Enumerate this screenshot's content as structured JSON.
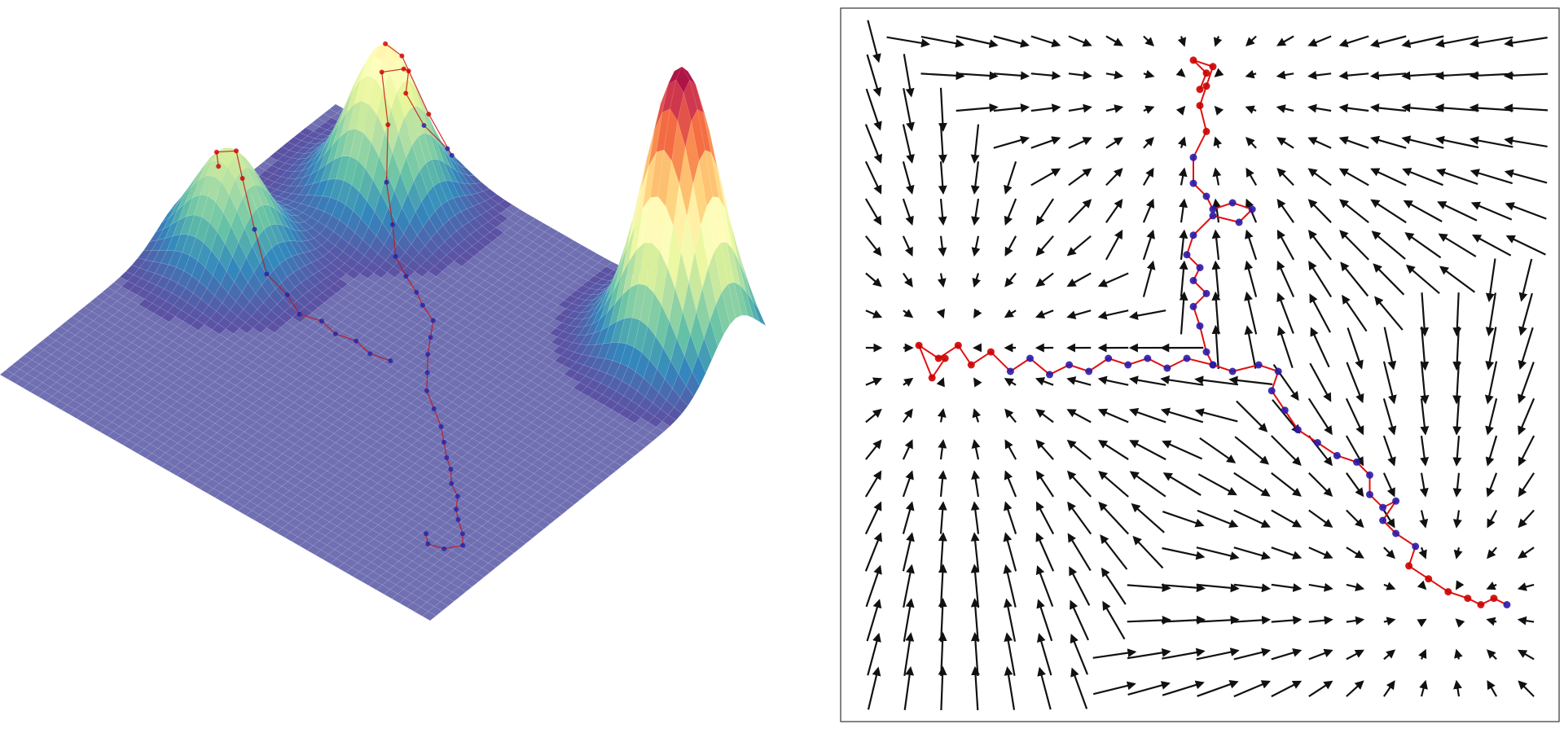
{
  "chart_data": [
    {
      "type": "surface",
      "title": "",
      "xlabel": "",
      "ylabel": "",
      "zlabel": "",
      "axes_visible": false,
      "colormap": "Spectral_r",
      "colors": {
        "base": "#6f6fb2",
        "low": "#5e4fa2",
        "mid": "#fee08b",
        "high": "#9e0142",
        "path_line": "#cc1111",
        "path_point_low": "#2222aa",
        "path_point_high": "#cc0000"
      },
      "grid_extent": [
        [
          -1,
          1
        ],
        [
          -1,
          1
        ]
      ],
      "peaks": [
        {
          "center": [
            0.75,
            0.82
          ],
          "height": 1.0,
          "width": 0.14
        },
        {
          "center": [
            -0.55,
            0.72
          ],
          "height": 0.55,
          "width": 0.14
        },
        {
          "center": [
            -0.78,
            0.08
          ],
          "height": 0.38,
          "width": 0.14
        }
      ],
      "path": [
        [
          -0.55,
          0.72
        ],
        [
          -0.52,
          0.78
        ],
        [
          -0.45,
          0.85
        ],
        [
          -0.42,
          0.95
        ],
        [
          -0.48,
          1.0
        ],
        [
          -0.55,
          0.95
        ],
        [
          -0.58,
          0.88
        ],
        [
          -0.52,
          0.82
        ],
        [
          -0.48,
          0.74
        ],
        [
          -0.52,
          0.66
        ],
        [
          -0.46,
          0.62
        ],
        [
          -0.42,
          0.56
        ],
        [
          -0.36,
          0.52
        ],
        [
          -0.3,
          0.46
        ],
        [
          -0.22,
          0.42
        ],
        [
          -0.14,
          0.38
        ],
        [
          -0.08,
          0.34
        ],
        [
          0.0,
          0.3
        ],
        [
          0.05,
          0.22
        ],
        [
          0.1,
          0.14
        ],
        [
          0.16,
          0.06
        ],
        [
          0.22,
          -0.02
        ],
        [
          0.3,
          -0.08
        ],
        [
          0.38,
          -0.14
        ],
        [
          0.44,
          -0.2
        ],
        [
          0.5,
          -0.26
        ],
        [
          0.55,
          -0.3
        ],
        [
          0.6,
          -0.36
        ],
        [
          0.66,
          -0.4
        ],
        [
          0.7,
          -0.46
        ],
        [
          0.74,
          -0.5
        ],
        [
          0.8,
          -0.55
        ],
        [
          0.84,
          -0.6
        ],
        [
          0.8,
          -0.66
        ],
        [
          0.74,
          -0.68
        ],
        [
          0.7,
          -0.64
        ]
      ],
      "path_branch": [
        [
          0.02,
          0.02
        ],
        [
          -0.06,
          0.0
        ],
        [
          -0.14,
          0.02
        ],
        [
          -0.22,
          0.0
        ],
        [
          -0.3,
          0.02
        ],
        [
          -0.38,
          -0.01
        ],
        [
          -0.46,
          0.02
        ],
        [
          -0.54,
          0.0
        ],
        [
          -0.62,
          0.03
        ],
        [
          -0.7,
          0.06
        ],
        [
          -0.76,
          0.1
        ],
        [
          -0.82,
          0.06
        ],
        [
          -0.78,
          0.02
        ]
      ]
    },
    {
      "type": "quiver",
      "title": "",
      "xlabel": "",
      "ylabel": "",
      "xlim": [
        -1,
        1
      ],
      "ylim": [
        -1,
        1
      ],
      "grid": false,
      "tick_labels": false,
      "arrow_grid": [
        20,
        20
      ],
      "attractors": [
        {
          "center": [
            0.0,
            0.85
          ],
          "strength": 1.0
        },
        {
          "center": [
            -0.75,
            0.05
          ],
          "strength": 1.0
        },
        {
          "center": [
            0.75,
            -0.75
          ],
          "strength": 1.0
        }
      ],
      "colors": {
        "arrow": "#111111",
        "path_line": "#e01010",
        "frame": "#333333"
      },
      "trajectory": [
        [
          0.0,
          0.85
        ],
        [
          0.02,
          0.9
        ],
        [
          -0.02,
          0.94
        ],
        [
          0.04,
          0.92
        ],
        [
          0.02,
          0.86
        ],
        [
          0.0,
          0.8
        ],
        [
          0.02,
          0.72
        ],
        [
          -0.02,
          0.64
        ],
        [
          -0.02,
          0.56
        ],
        [
          0.02,
          0.52
        ],
        [
          0.04,
          0.48
        ],
        [
          0.1,
          0.5
        ],
        [
          0.16,
          0.48
        ],
        [
          0.12,
          0.44
        ],
        [
          0.04,
          0.46
        ],
        [
          -0.02,
          0.4
        ],
        [
          -0.04,
          0.34
        ],
        [
          0.0,
          0.3
        ],
        [
          -0.02,
          0.26
        ],
        [
          0.02,
          0.22
        ],
        [
          -0.02,
          0.18
        ],
        [
          0.0,
          0.12
        ],
        [
          0.02,
          0.04
        ],
        [
          0.04,
          0.0
        ],
        [
          0.1,
          -0.02
        ],
        [
          0.18,
          0.0
        ],
        [
          0.24,
          -0.02
        ],
        [
          0.22,
          -0.08
        ],
        [
          0.26,
          -0.14
        ],
        [
          0.3,
          -0.2
        ],
        [
          0.36,
          -0.24
        ],
        [
          0.42,
          -0.28
        ],
        [
          0.48,
          -0.3
        ],
        [
          0.52,
          -0.34
        ],
        [
          0.52,
          -0.4
        ],
        [
          0.56,
          -0.44
        ],
        [
          0.6,
          -0.42
        ],
        [
          0.56,
          -0.48
        ],
        [
          0.6,
          -0.52
        ],
        [
          0.66,
          -0.56
        ],
        [
          0.64,
          -0.62
        ],
        [
          0.7,
          -0.66
        ],
        [
          0.76,
          -0.7
        ],
        [
          0.82,
          -0.72
        ],
        [
          0.86,
          -0.74
        ],
        [
          0.9,
          -0.72
        ],
        [
          0.94,
          -0.74
        ]
      ],
      "trajectory_branch": [
        [
          0.04,
          0.0
        ],
        [
          -0.04,
          0.02
        ],
        [
          -0.1,
          -0.01
        ],
        [
          -0.16,
          0.02
        ],
        [
          -0.22,
          0.0
        ],
        [
          -0.28,
          0.02
        ],
        [
          -0.34,
          -0.02
        ],
        [
          -0.4,
          0.0
        ],
        [
          -0.46,
          -0.03
        ],
        [
          -0.52,
          0.02
        ],
        [
          -0.58,
          -0.02
        ],
        [
          -0.64,
          0.04
        ],
        [
          -0.7,
          0.0
        ],
        [
          -0.74,
          0.06
        ],
        [
          -0.8,
          0.02
        ],
        [
          -0.86,
          0.06
        ],
        [
          -0.82,
          -0.04
        ],
        [
          -0.78,
          0.02
        ]
      ]
    }
  ]
}
